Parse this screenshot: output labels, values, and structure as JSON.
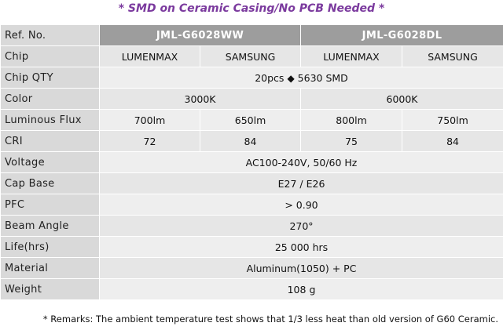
{
  "banner": "* SMD on Ceramic Casing/No PCB Needed *",
  "rows": {
    "ref": {
      "label": "Ref. No.",
      "model_a": "JML-G6028WW",
      "model_b": "JML-G6028DL"
    },
    "chip": {
      "label": "Chip",
      "values": [
        "LUMENMAX",
        "SAMSUNG",
        "LUMENMAX",
        "SAMSUNG"
      ]
    },
    "chip_qty": {
      "label": "Chip QTY",
      "value_left": "20pcs",
      "value_right": "5630 SMD"
    },
    "color": {
      "label": "Color",
      "a": "3000K",
      "b": "6000K"
    },
    "flux": {
      "label": "Luminous Flux",
      "values": [
        "700lm",
        "650lm",
        "800lm",
        "750lm"
      ]
    },
    "cri": {
      "label": "CRI",
      "values": [
        "72",
        "84",
        "75",
        "84"
      ]
    },
    "voltage": {
      "label": "Voltage",
      "value": "AC100-240V, 50/60 Hz"
    },
    "cap": {
      "label": "Cap Base",
      "value": "E27 / E26"
    },
    "pfc": {
      "label": "PFC",
      "value": "> 0.90"
    },
    "beam": {
      "label": "Beam Angle",
      "value": "270°"
    },
    "life": {
      "label": "Life(hrs)",
      "value": "25 000 hrs"
    },
    "material": {
      "label": "Material",
      "value": "Aluminum(1050) + PC"
    },
    "weight": {
      "label": "Weight",
      "value": "108 g"
    }
  },
  "remarks": "* Remarks: The  ambient temperature test shows that 1/3 less heat than old version of G60 Ceramic."
}
